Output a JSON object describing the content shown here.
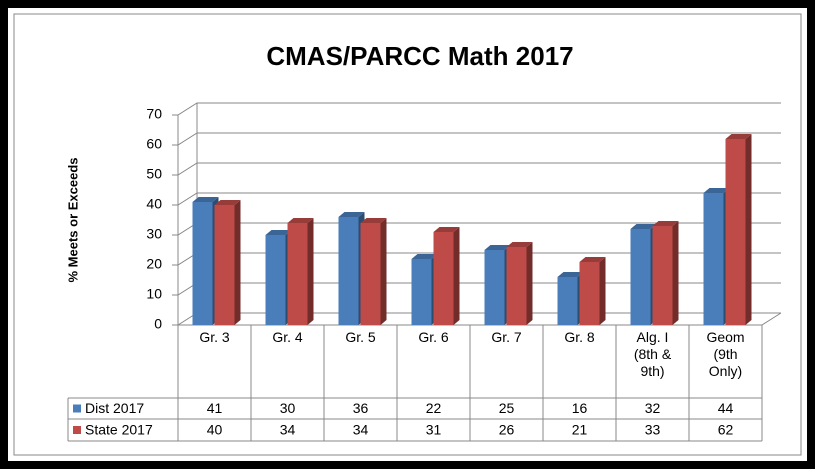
{
  "chart_data": {
    "type": "bar",
    "title": "CMAS/PARCC Math 2017",
    "y_label": "% Meets or Exceeds",
    "categories": [
      "Gr. 3",
      "Gr. 4",
      "Gr. 5",
      "Gr. 6",
      "Gr. 7",
      "Gr. 8",
      "Alg. I (8th & 9th)",
      "Geom (9th Only)"
    ],
    "series": [
      {
        "name": "Dist 2017",
        "color": "#4a7ebb",
        "values": [
          41,
          30,
          36,
          22,
          25,
          16,
          32,
          44
        ]
      },
      {
        "name": "State 2017",
        "color": "#be4b48",
        "values": [
          40,
          34,
          34,
          31,
          26,
          21,
          33,
          62
        ]
      }
    ],
    "ylim": [
      0,
      70
    ],
    "yticks": [
      0,
      10,
      20,
      30,
      40,
      50,
      60,
      70
    ],
    "grid": true
  }
}
